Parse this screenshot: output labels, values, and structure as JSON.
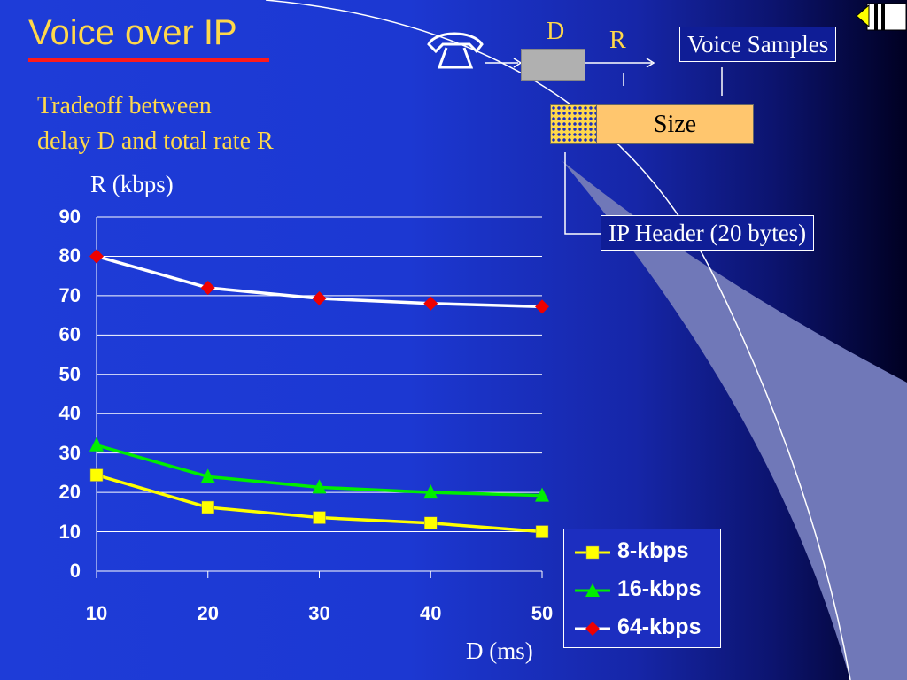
{
  "slide": {
    "title": "Voice over IP",
    "subtitle_line1": "Tradeoff between",
    "subtitle_line2": "delay D and total rate R"
  },
  "diagram": {
    "label_d": "D",
    "label_r": "R",
    "voice_samples": "Voice Samples",
    "size": "Size",
    "ip_header": "IP Header (20 bytes)",
    "icons": [
      "telephone-icon",
      "encoder-box",
      "arrow-right-icon",
      "navigation-tab-icon"
    ]
  },
  "chart_data": {
    "type": "line",
    "ylabel": "R (kbps)",
    "xlabel": "D (ms)",
    "x": [
      10,
      20,
      30,
      40,
      50
    ],
    "xticks": [
      "10",
      "20",
      "30",
      "40",
      "50"
    ],
    "yticks": [
      "0",
      "10",
      "20",
      "30",
      "40",
      "50",
      "60",
      "70",
      "80",
      "90"
    ],
    "ylim": [
      0,
      90
    ],
    "grid": "horizontal",
    "legend_position": "bottom-right",
    "series": [
      {
        "name": "8-kbps",
        "values": [
          24.4,
          16.2,
          13.6,
          12.2,
          10.0
        ],
        "color": "#ffff00",
        "marker": "square"
      },
      {
        "name": "16-kbps",
        "values": [
          32.0,
          24.0,
          21.3,
          20.0,
          19.2
        ],
        "color": "#00ee00",
        "marker": "triangle"
      },
      {
        "name": "64-kbps",
        "values": [
          80.0,
          72.0,
          69.3,
          68.0,
          67.2
        ],
        "color": "#ffffff",
        "marker": "diamond",
        "marker_color": "#ee0000"
      }
    ]
  }
}
